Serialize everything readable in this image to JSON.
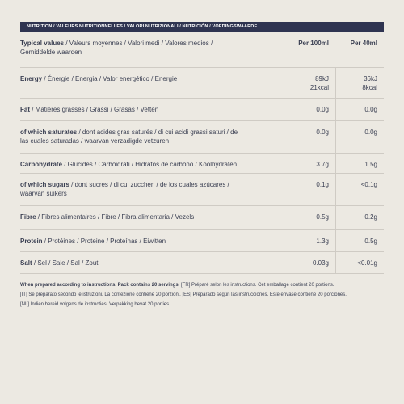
{
  "header": {
    "title": "NUTRITION / VALEURS NUTRITIONNELLES / VALORI NUTRIZIONALI / NUTRICIÓN / VOEDINGSWAARDE"
  },
  "table": {
    "head": {
      "bold": "Typical values",
      "rest": " / Valeurs moyennes / Valori medi / Valores medios / Gemiddelde waarden",
      "col1": "Per 100ml",
      "col2": "Per 40ml"
    },
    "rows": [
      {
        "bold": "Energy",
        "rest": " / Énergie / Energia / Valor energético / Energie",
        "col1": [
          "89kJ",
          "21kcal"
        ],
        "col2": [
          "36kJ",
          "8kcal"
        ]
      },
      {
        "bold": "Fat",
        "rest": " / Matières grasses / Grassi / Grasas / Vetten",
        "col1": [
          "0.0g"
        ],
        "col2": [
          "0.0g"
        ]
      },
      {
        "bold": "of which saturates",
        "rest": " / dont acides gras saturés / di cui acidi grassi saturi / de las cuales saturadas / waarvan verzadigde vetzuren",
        "col1": [
          "0.0g"
        ],
        "col2": [
          "0.0g"
        ]
      },
      {
        "bold": "Carbohydrate",
        "rest": " / Glucides / Carboidrati / Hidratos de carbono / Koolhydraten",
        "col1": [
          "3.7g"
        ],
        "col2": [
          "1.5g"
        ]
      },
      {
        "bold": "of which sugars",
        "rest": " / dont sucres / di cui zuccheri / de los cuales azúcares / waarvan suikers",
        "col1": [
          "0.1g"
        ],
        "col2": [
          "<0.1g"
        ]
      },
      {
        "bold": "Fibre",
        "rest": " / Fibres alimentaires / Fibre / Fibra alimentaria / Vezels",
        "col1": [
          "0.5g"
        ],
        "col2": [
          "0.2g"
        ]
      },
      {
        "bold": "Protein",
        "rest": " / Protéines / Proteine / Proteínas / Eiwitten",
        "col1": [
          "1.3g"
        ],
        "col2": [
          "0.5g"
        ]
      },
      {
        "bold": "Salt",
        "rest": " / Sel / Sale / Sal / Zout",
        "col1": [
          "0.03g"
        ],
        "col2": [
          "<0.01g"
        ]
      }
    ]
  },
  "footer": {
    "bold": "When prepared according to instructions. Pack contains 20 servings.",
    "rest": " [FR] Préparé selon les instructions. Cet emballage contient 20 portions.",
    "lines": [
      "[IT] Se preparato secondo le istruzioni. La confezione contiene 20 porzioni. [ES] Preparado según las instrucciones. Este envase contiene 20 porciones.",
      "[NL] Indien bereid volgens de instructies. Verpakking bevat 20 porties."
    ]
  }
}
